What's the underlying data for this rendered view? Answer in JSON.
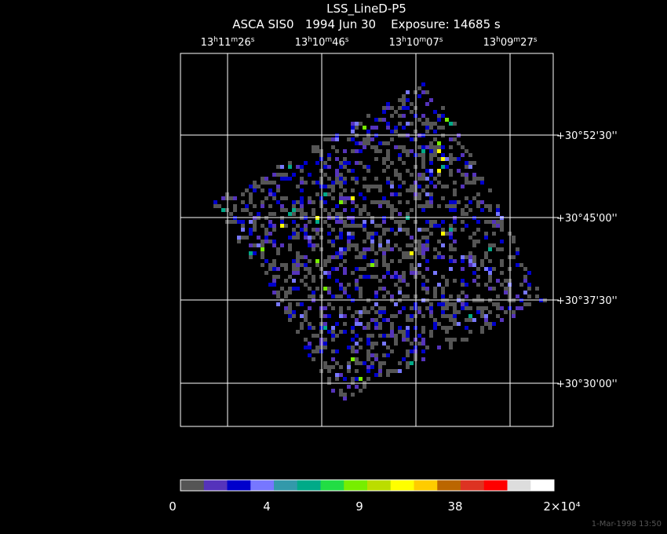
{
  "header": {
    "title": "LSS_LineD-P5",
    "subtitle": "ASCA SIS0   1994 Jun 30    Exposure: 14685 s"
  },
  "ra_labels": [
    [
      "13",
      "h",
      "11",
      "m",
      "26",
      "s"
    ],
    [
      "13",
      "h",
      "10",
      "m",
      "46",
      "s"
    ],
    [
      "13",
      "h",
      "10",
      "m",
      "07",
      "s"
    ],
    [
      "13",
      "h",
      "09",
      "m",
      "27",
      "s"
    ]
  ],
  "dec_labels": [
    "+30°52'30''",
    "+30°45'00''",
    "+30°37'30''",
    "+30°30'00''"
  ],
  "colorbar": {
    "colors": [
      "#555555",
      "#5533bb",
      "#0000cc",
      "#7777ff",
      "#3399aa",
      "#00aa88",
      "#22dd44",
      "#77ee00",
      "#bbdd00",
      "#ffff00",
      "#ffcc00",
      "#bb6600",
      "#dd3322",
      "#ff0000",
      "#dddddd",
      "#ffffff"
    ],
    "labels": [
      "0",
      "4",
      "9",
      "38",
      "2×10⁴"
    ]
  },
  "footer": "1-Mar-1998 13:50"
}
